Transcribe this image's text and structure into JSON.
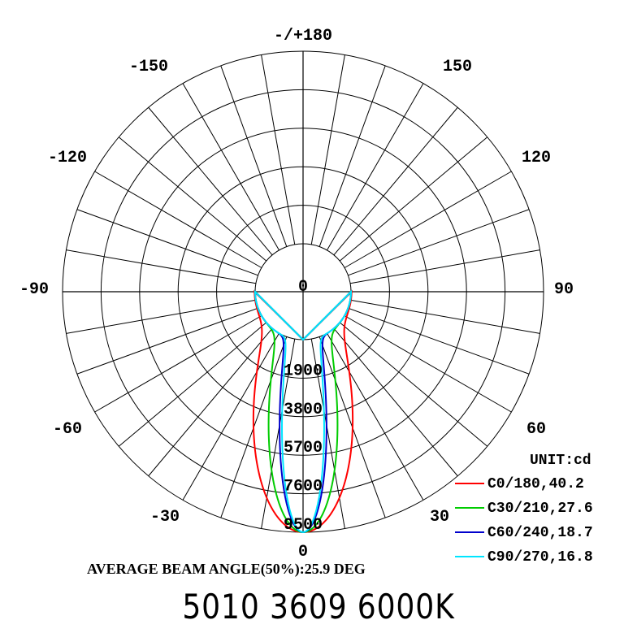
{
  "chart_data": {
    "type": "polar",
    "unit_label": "UNIT:cd",
    "angle_labels": [
      "-/+180",
      "150",
      "120",
      "90",
      "60",
      "30",
      "0",
      "-30",
      "-60",
      "-90",
      "-120",
      "-150"
    ],
    "radial_labels": [
      "0",
      "1900",
      "3800",
      "5700",
      "7600",
      "9500"
    ],
    "rmax": 9500,
    "series": [
      {
        "name": "C0/180,40.2",
        "color": "#ff0000",
        "beam_deg": 40.2,
        "peak": 9500
      },
      {
        "name": "C30/210,27.6",
        "color": "#00cc00",
        "beam_deg": 27.6,
        "peak": 9500
      },
      {
        "name": "C60/240,18.7",
        "color": "#0000cc",
        "beam_deg": 18.7,
        "peak": 9500
      },
      {
        "name": "C90/270,16.8",
        "color": "#00e5ff",
        "beam_deg": 16.8,
        "peak": 9500
      }
    ],
    "annotation": "AVERAGE BEAM ANGLE(50%):25.9 DEG"
  },
  "title": "5010 3609 6000K"
}
